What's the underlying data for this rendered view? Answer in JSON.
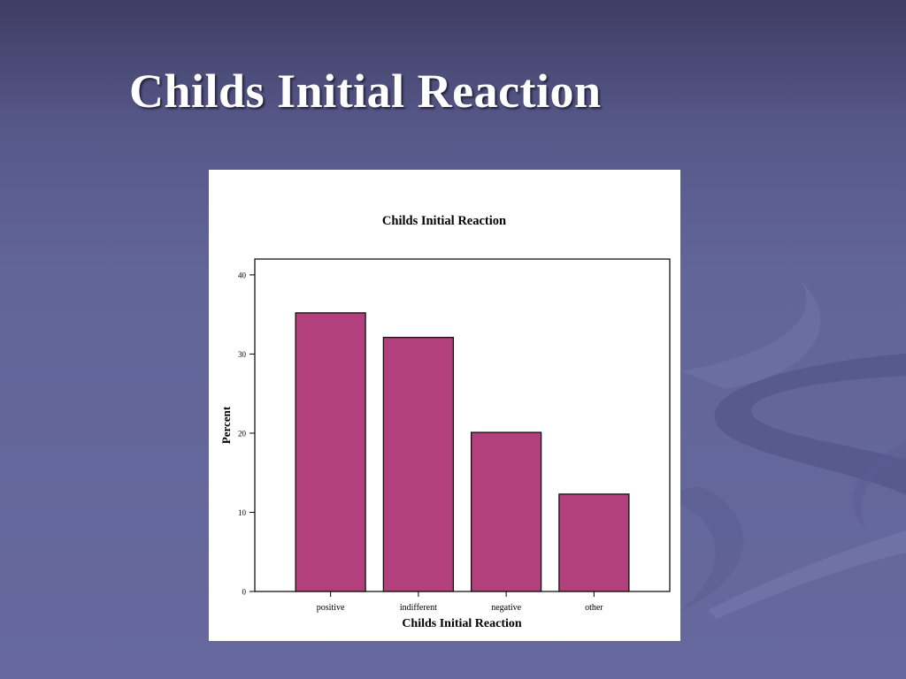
{
  "slide": {
    "title": "Childs Initial Reaction"
  },
  "colors": {
    "bar_fill": "#b2407c",
    "bar_stroke": "#111111"
  },
  "chart_data": {
    "type": "bar",
    "title": "Childs Initial Reaction",
    "xlabel": "Childs Initial Reaction",
    "ylabel": "Percent",
    "categories": [
      "positive",
      "indifferent",
      "negative",
      "other"
    ],
    "values": [
      35.2,
      32.1,
      20.1,
      12.3
    ],
    "ylim": [
      0,
      42
    ],
    "yticks": [
      0,
      10,
      20,
      30,
      40
    ],
    "grid": false,
    "legend": "none"
  }
}
